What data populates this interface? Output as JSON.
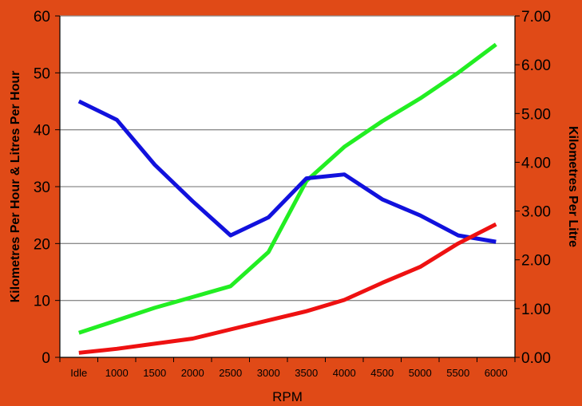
{
  "chart_data": {
    "type": "line",
    "categories": [
      "Idle",
      "1000",
      "1500",
      "2000",
      "2500",
      "3000",
      "3500",
      "4000",
      "4500",
      "5000",
      "5500",
      "6000"
    ],
    "xlabel": "RPM",
    "ylabel": "Kilometres Per Hour & Litres Per Hour",
    "y2label": "Kilometres Per Litre",
    "ylim": [
      0,
      60
    ],
    "y2lim": [
      0,
      7
    ],
    "yticks": [
      "0",
      "10",
      "20",
      "30",
      "40",
      "50",
      "60"
    ],
    "y2ticks": [
      "0.00",
      "1.00",
      "2.00",
      "3.00",
      "4.00",
      "5.00",
      "6.00",
      "7.00"
    ],
    "grid": true,
    "series": [
      {
        "color": "#22ee22",
        "axis": "left",
        "values": [
          4.3,
          6.5,
          8.7,
          10.6,
          12.5,
          18.5,
          31.0,
          37.0,
          41.5,
          45.5,
          50.0,
          55.0
        ]
      },
      {
        "color": "#1111dd",
        "axis": "right",
        "values": [
          5.25,
          4.87,
          3.95,
          3.2,
          2.5,
          2.87,
          3.67,
          3.75,
          3.24,
          2.91,
          2.5,
          2.37
        ]
      },
      {
        "color": "#ee1111",
        "axis": "left",
        "values": [
          0.8,
          1.5,
          2.4,
          3.3,
          4.9,
          6.5,
          8.1,
          10.1,
          13.1,
          15.9,
          20.0,
          23.4
        ]
      }
    ]
  }
}
